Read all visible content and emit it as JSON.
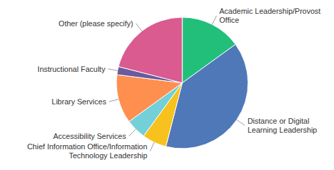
{
  "chart_data": {
    "type": "pie",
    "categories": [
      "Academic Leadership/Provost Office",
      "Distance or Digital Learning Leadership",
      "Chief Information Office/Information Technology Leadership",
      "Accessibility Services",
      "Library Services",
      "Instructional Faculty",
      "Other (please specify)"
    ],
    "values": [
      15,
      39,
      6,
      5,
      12,
      2,
      21
    ],
    "colors": [
      "#22bf7b",
      "#4f78b8",
      "#f8c21e",
      "#73d0d8",
      "#ff8f4f",
      "#6b5b9e",
      "#d95b8f"
    ]
  }
}
